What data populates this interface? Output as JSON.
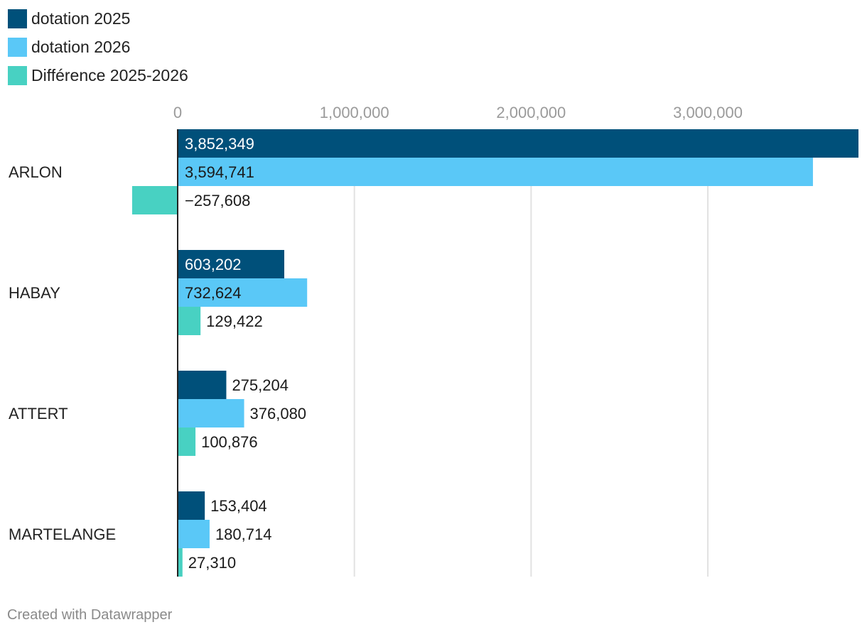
{
  "chart_data": {
    "type": "bar",
    "orientation": "horizontal",
    "title": "",
    "xlabel": "",
    "ylabel": "",
    "xlim": [
      -260000,
      3852349
    ],
    "ticks": [
      {
        "value": 0,
        "label": "0"
      },
      {
        "value": 1000000,
        "label": "1,000,000"
      },
      {
        "value": 2000000,
        "label": "2,000,000"
      },
      {
        "value": 3000000,
        "label": "3,000,000"
      }
    ],
    "grid": true,
    "legend_position": "top-left",
    "categories": [
      "ARLON",
      "HABAY",
      "ATTERT",
      "MARTELANGE"
    ],
    "series": [
      {
        "name": "dotation 2025",
        "color": "#00507a",
        "values": [
          3852349,
          603202,
          275204,
          153404
        ],
        "labels": [
          "3,852,349",
          "603,202",
          "275,204",
          "153,404"
        ]
      },
      {
        "name": "dotation 2026",
        "color": "#5ac8f7",
        "values": [
          3594741,
          732624,
          376080,
          180714
        ],
        "labels": [
          "3,594,741",
          "732,624",
          "376,080",
          "180,714"
        ]
      },
      {
        "name": "Différence 2025-2026",
        "color": "#48d1c2",
        "values": [
          -257608,
          129422,
          100876,
          27310
        ],
        "labels": [
          "−257,608",
          "129,422",
          "100,876",
          "27,310"
        ]
      }
    ]
  },
  "credit": "Created with Datawrapper"
}
